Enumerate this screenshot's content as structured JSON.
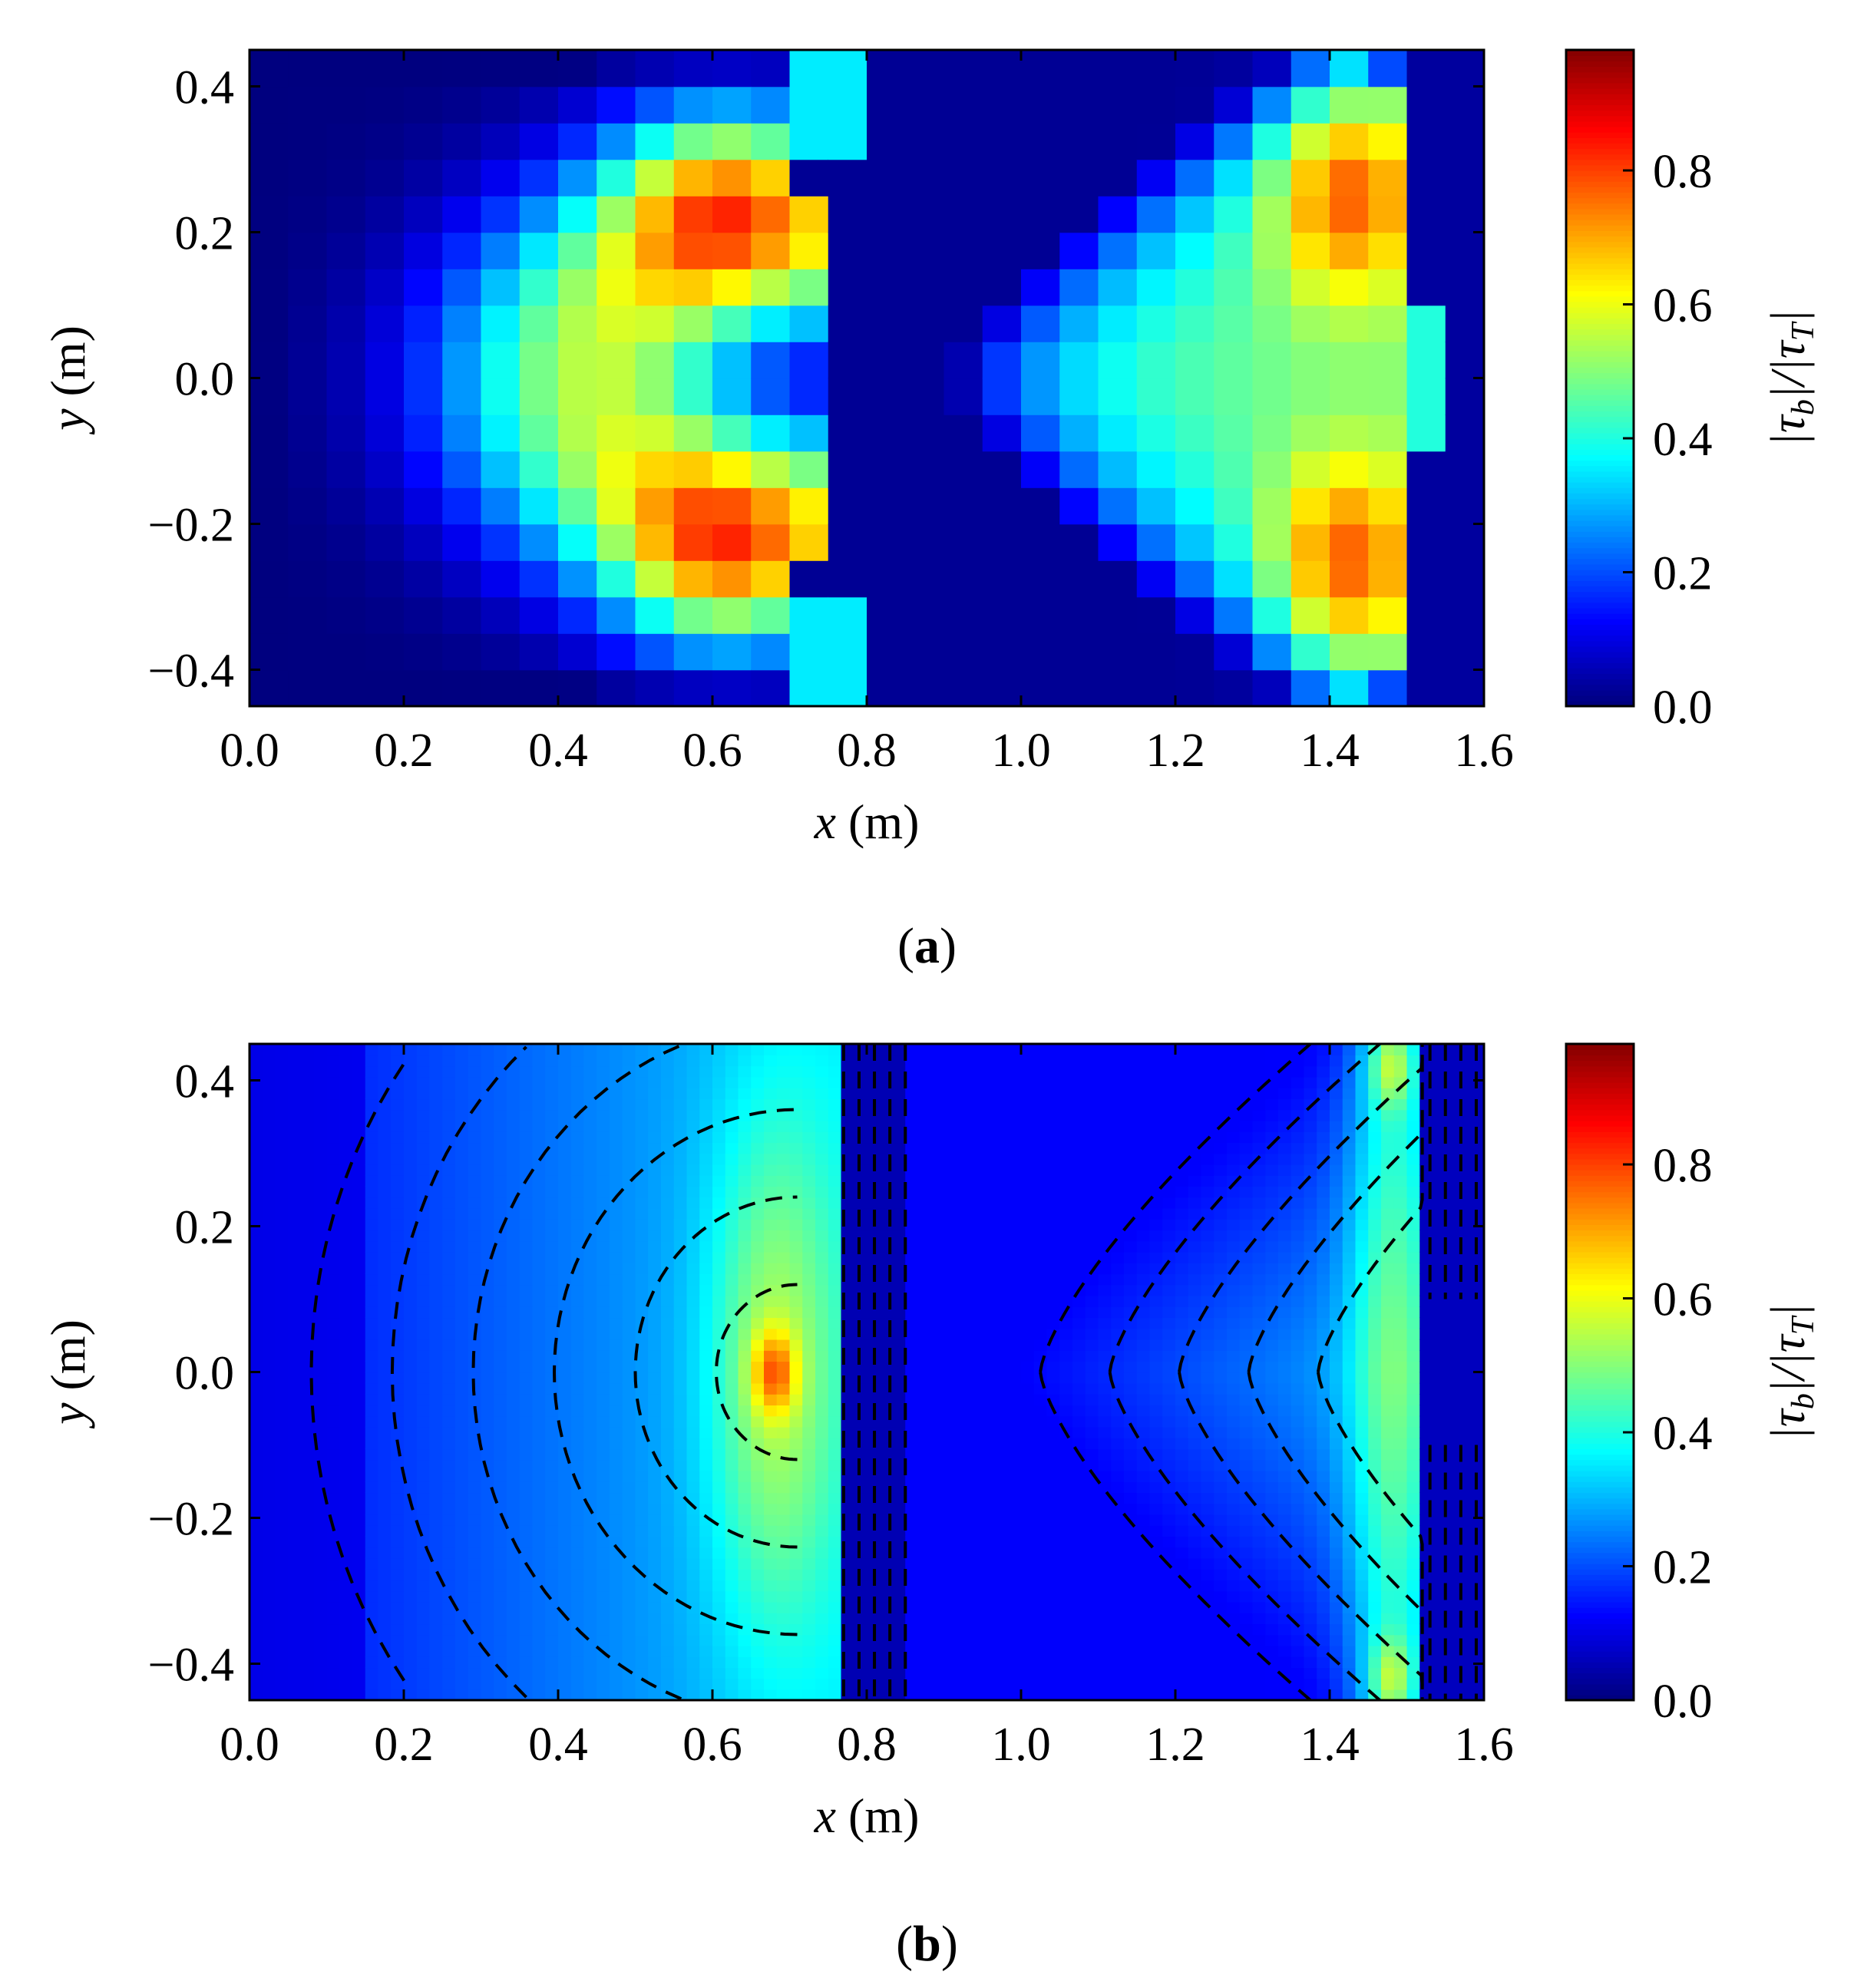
{
  "colors": {
    "colormap": [
      "#00007f",
      "#0000ff",
      "#007fff",
      "#00ffff",
      "#7fff7f",
      "#ffff00",
      "#ff7f00",
      "#ff0000",
      "#7f0000"
    ],
    "axes": "#000000",
    "contour": "#000000"
  },
  "chart_data": [
    {
      "type": "heatmap",
      "panel_label": "a",
      "title": "",
      "xlabel": "x (m)",
      "xlabel_var": "x",
      "xlabel_unit": " (m)",
      "ylabel": "y (m)",
      "ylabel_var": "y",
      "ylabel_unit": " (m)",
      "colorbar_label": "|τb|/|τT|",
      "colorbar_label_text": "|τ",
      "colorbar_label_sub1": "b",
      "colorbar_label_mid": "|/|τ",
      "colorbar_label_sub2": "T",
      "colorbar_label_end": "|",
      "xlim": [
        0.0,
        1.6
      ],
      "ylim": [
        -0.45,
        0.45
      ],
      "clim": [
        0.0,
        0.98
      ],
      "xticks": [
        0.0,
        0.2,
        0.4,
        0.6,
        0.8,
        1.0,
        1.2,
        1.4,
        1.6
      ],
      "xtick_labels": [
        "0.0",
        "0.2",
        "0.4",
        "0.6",
        "0.8",
        "1.0",
        "1.2",
        "1.4",
        "1.6"
      ],
      "yticks": [
        0.4,
        0.2,
        0.0,
        -0.2,
        -0.4
      ],
      "ytick_labels": [
        "0.4",
        "0.2",
        "0.0",
        "−0.2",
        "−0.4"
      ],
      "cticks": [
        0.0,
        0.2,
        0.4,
        0.6,
        0.8
      ],
      "ctick_labels": [
        "0.0",
        "0.2",
        "0.4",
        "0.6",
        "0.8"
      ],
      "grid": false,
      "field": {
        "description_x": [
          0.0,
          0.1,
          0.2,
          0.3,
          0.4,
          0.5,
          0.6,
          0.7,
          0.78,
          0.85,
          0.95,
          1.05,
          1.15,
          1.25,
          1.35,
          1.45,
          1.5,
          1.55,
          1.6
        ],
        "left_region_peak": 0.8,
        "right_region_peak": 0.8,
        "center_gap_x": [
          0.72,
          1.15
        ],
        "front_x_left": 0.72,
        "front_x_right": 1.5
      }
    },
    {
      "type": "heatmap",
      "panel_label": "b",
      "title": "",
      "xlabel": "x (m)",
      "xlabel_var": "x",
      "xlabel_unit": " (m)",
      "ylabel": "y (m)",
      "ylabel_var": "y",
      "ylabel_unit": " (m)",
      "colorbar_label": "|τb|/|τT|",
      "colorbar_label_text": "|τ",
      "colorbar_label_sub1": "b",
      "colorbar_label_mid": "|/|τ",
      "colorbar_label_sub2": "T",
      "colorbar_label_end": "|",
      "xlim": [
        0.0,
        1.6
      ],
      "ylim": [
        -0.45,
        0.45
      ],
      "clim": [
        0.0,
        0.98
      ],
      "xticks": [
        0.0,
        0.2,
        0.4,
        0.6,
        0.8,
        1.0,
        1.2,
        1.4,
        1.6
      ],
      "xtick_labels": [
        "0.0",
        "0.2",
        "0.4",
        "0.6",
        "0.8",
        "1.0",
        "1.2",
        "1.4",
        "1.6"
      ],
      "yticks": [
        0.4,
        0.2,
        0.0,
        -0.2,
        -0.4
      ],
      "ytick_labels": [
        "0.4",
        "0.2",
        "0.0",
        "−0.2",
        "−0.4"
      ],
      "cticks": [
        0.0,
        0.2,
        0.4,
        0.6,
        0.8
      ],
      "ctick_labels": [
        "0.0",
        "0.2",
        "0.4",
        "0.6",
        "0.8"
      ],
      "grid": false,
      "contours": "dashed black",
      "field": {
        "front_x_left": 0.74,
        "front_x_right": 1.52,
        "left_peak": 0.62,
        "right_peak": 0.6
      }
    }
  ]
}
